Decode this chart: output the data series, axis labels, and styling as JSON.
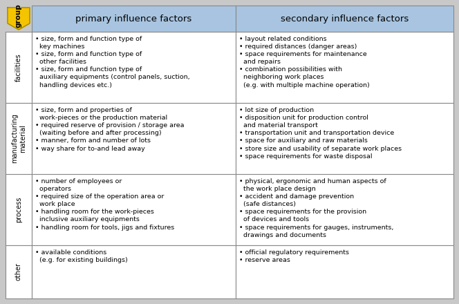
{
  "bg_color": "#c8c8c8",
  "header_bg": "#a8c4e0",
  "header_text_color": "#000000",
  "cell_bg": "#ffffff",
  "group_color": "#f5c400",
  "group_border": "#a08800",
  "headers": [
    "primary influence factors",
    "secondary influence factors"
  ],
  "row_labels": [
    "facilities",
    "manufacturing\nmaterial",
    "process",
    "other"
  ],
  "primary_cells": [
    "• size, form and function type of\n  key machines\n• size, form and function type of\n  other facilities\n• size, form and function type of\n  auxiliary equipments (control panels, suction,\n  handling devices etc.)",
    "• size, form and properties of\n  work-pieces or the production material\n• required reserve of provision / storage area\n  (waiting before and after processing)\n• manner, form and number of lots\n• way share for to-and lead away",
    "• number of employees or\n  operators\n• required size of the operation area or\n  work place\n• handling room for the work-pieces\n  inclusive auxiliary equipments\n• handling room for tools, jigs and fixtures",
    "• available conditions\n  (e.g. for existing buildings)"
  ],
  "secondary_cells": [
    "• layout related conditions\n• required distances (danger areas)\n• space requirements for maintenance\n  and repairs\n• combination possibilities with\n  neighboring work places\n  (e.g. with multiple machine operation)",
    "• lot size of production\n• disposition unit for production control\n  and material transport\n• transportation unit and transportation device\n• space for auxiliary and raw materials\n• store size and usability of separate work places\n• space requirements for waste disposal",
    "• physical, ergonomic and human aspects of\n  the work place design\n• accident and damage prevention\n  (safe distances)\n• space requirements for the provision\n  of devices and tools\n• space requirements for gauges, instruments,\n  drawings and documents",
    "• official regulatory requirements\n• reserve areas"
  ],
  "font_size_header": 9.5,
  "font_size_cell": 6.8,
  "font_size_label": 7.0,
  "font_size_group": 7.5
}
